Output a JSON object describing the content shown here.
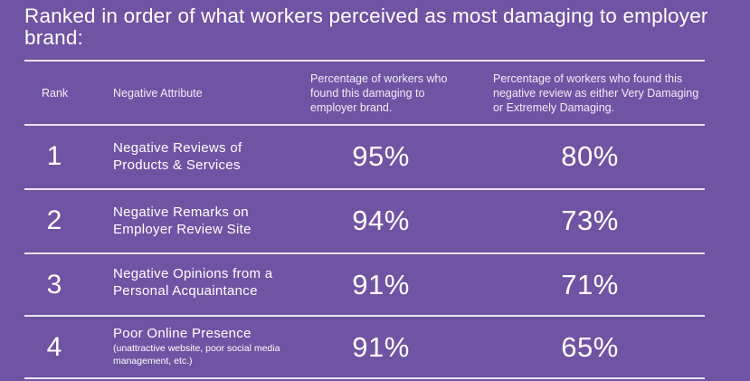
{
  "title": "Ranked in order of what workers perceived as most damaging to employer brand:",
  "headers": {
    "rank": "Rank",
    "attribute": "Negative Attribute",
    "pct_damaging": "Percentage of workers who found this damaging to employer brand.",
    "pct_very": "Percentage of workers who found this negative review as either Very Damaging or Extremely Damaging."
  },
  "rows": [
    {
      "rank": "1",
      "attribute": "Negative Reviews of Products & Services",
      "note": "",
      "pct_damaging": "95%",
      "pct_very": "80%"
    },
    {
      "rank": "2",
      "attribute": "Negative Remarks on Employer Review Site",
      "note": "",
      "pct_damaging": "94%",
      "pct_very": "73%"
    },
    {
      "rank": "3",
      "attribute": "Negative Opinions from a Personal Acquaintance",
      "note": "",
      "pct_damaging": "91%",
      "pct_very": "71%"
    },
    {
      "rank": "4",
      "attribute": "Poor Online Presence",
      "note": "(unattractive website, poor social media management, etc.)",
      "pct_damaging": "91%",
      "pct_very": "65%"
    }
  ]
}
